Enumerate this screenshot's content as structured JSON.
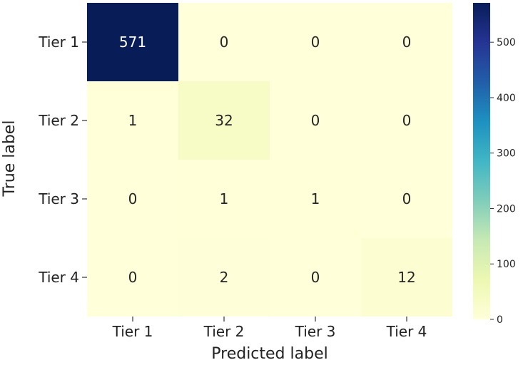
{
  "chart_data": {
    "type": "heatmap",
    "title": "",
    "xlabel": "Predicted label",
    "ylabel": "True label",
    "x_categories": [
      "Tier 1",
      "Tier 2",
      "Tier 3",
      "Tier 4"
    ],
    "y_categories": [
      "Tier 1",
      "Tier 2",
      "Tier 3",
      "Tier 4"
    ],
    "values": [
      [
        571,
        0,
        0,
        0
      ],
      [
        1,
        32,
        0,
        0
      ],
      [
        0,
        1,
        1,
        0
      ],
      [
        0,
        2,
        0,
        12
      ]
    ],
    "colormap": "YlGnBu",
    "colorbar": {
      "range": [
        0,
        571
      ],
      "ticks": [
        0,
        100,
        200,
        300,
        400,
        500
      ],
      "tick_labels": [
        "0",
        "100",
        "200",
        "300",
        "400",
        "500"
      ]
    },
    "grid": false,
    "legend": "colorbar-right"
  }
}
